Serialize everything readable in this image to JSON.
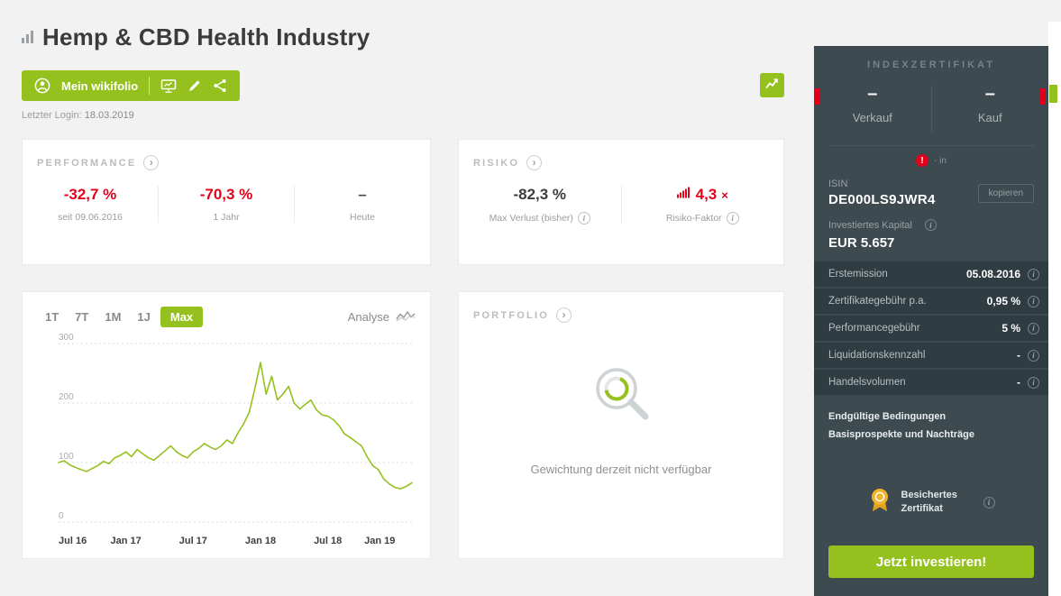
{
  "colors": {
    "accent_green": "#95c11f",
    "negative_red": "#e2001a",
    "sidebar_dark": "#3d4a4f",
    "sidebar_row": "#2f3c41"
  },
  "icons": {
    "chevron": "›",
    "info": "i",
    "exclamation": "!"
  },
  "header": {
    "title": "Hemp & CBD Health Industry",
    "my_wikifolio_label": "Mein wikifolio",
    "last_login_label": "Letzter Login:",
    "last_login_date": "18.03.2019"
  },
  "performance": {
    "title": "PERFORMANCE",
    "metrics": [
      {
        "value": "-32,7 %",
        "label": "seit 09.06.2016"
      },
      {
        "value": "-70,3 %",
        "label": "1 Jahr"
      },
      {
        "value": "–",
        "label": "Heute"
      }
    ]
  },
  "risiko": {
    "title": "RISIKO",
    "max_verlust_value": "-82,3 %",
    "max_verlust_label": "Max Verlust (bisher)",
    "risiko_faktor_value": "4,3",
    "risiko_faktor_suffix": "×",
    "risiko_faktor_label": "Risiko-Faktor"
  },
  "chart": {
    "ranges": [
      "1T",
      "7T",
      "1M",
      "1J",
      "Max"
    ],
    "selected_range": "Max",
    "analyse_label": "Analyse"
  },
  "chart_data": {
    "type": "line",
    "title": "",
    "xlabel": "",
    "ylabel": "",
    "ylim": [
      0,
      300
    ],
    "y_ticks": [
      0,
      100,
      200,
      300
    ],
    "x_tick_labels": [
      "Jul 16",
      "Jan 17",
      "Jul 17",
      "Jan 18",
      "Jul 18",
      "Jan 19"
    ],
    "x_tick_positions": [
      0,
      6,
      12,
      18,
      24,
      30
    ],
    "x_span_months": 31.5,
    "x_step_months": 0.5,
    "grid": "dotted-horizontal",
    "legend": false,
    "series": [
      {
        "name": "performance",
        "color": "#95c11f",
        "values": [
          100,
          103,
          96,
          92,
          88,
          85,
          90,
          95,
          102,
          98,
          108,
          112,
          118,
          110,
          122,
          115,
          108,
          104,
          112,
          120,
          128,
          118,
          112,
          108,
          118,
          124,
          132,
          126,
          122,
          128,
          138,
          132,
          150,
          165,
          185,
          225,
          268,
          215,
          245,
          205,
          215,
          228,
          200,
          190,
          198,
          205,
          188,
          180,
          178,
          172,
          162,
          148,
          142,
          135,
          128,
          110,
          95,
          88,
          72,
          64,
          58,
          56,
          60,
          66
        ]
      }
    ]
  },
  "portfolio": {
    "title": "PORTFOLIO",
    "empty_text": "Gewichtung derzeit nicht verfügbar"
  },
  "sidebar": {
    "title": "INDEXZERTIFIKAT",
    "verkauf": {
      "value": "–",
      "label": "Verkauf"
    },
    "kauf": {
      "value": "–",
      "label": "Kauf"
    },
    "notice_text": "· in",
    "isin_label": "ISIN",
    "isin_value": "DE000LS9JWR4",
    "kopieren_label": "kopieren",
    "invested_label": "Investiertes Kapital",
    "invested_value": "EUR 5.657",
    "rows": [
      {
        "label": "Erstemission",
        "value": "05.08.2016"
      },
      {
        "label": "Zertifikategebühr p.a.",
        "value": "0,95 %"
      },
      {
        "label": "Performancegebühr",
        "value": "5 %"
      },
      {
        "label": "Liquidationskennzahl",
        "value": "-"
      },
      {
        "label": "Handelsvolumen",
        "value": "-"
      }
    ],
    "links": [
      "Endgültige Bedingungen",
      "Basisprospekte und Nachträge"
    ],
    "badge_label_line1": "Besichertes",
    "badge_label_line2": "Zertifikat",
    "invest_button": "Jetzt investieren!"
  }
}
